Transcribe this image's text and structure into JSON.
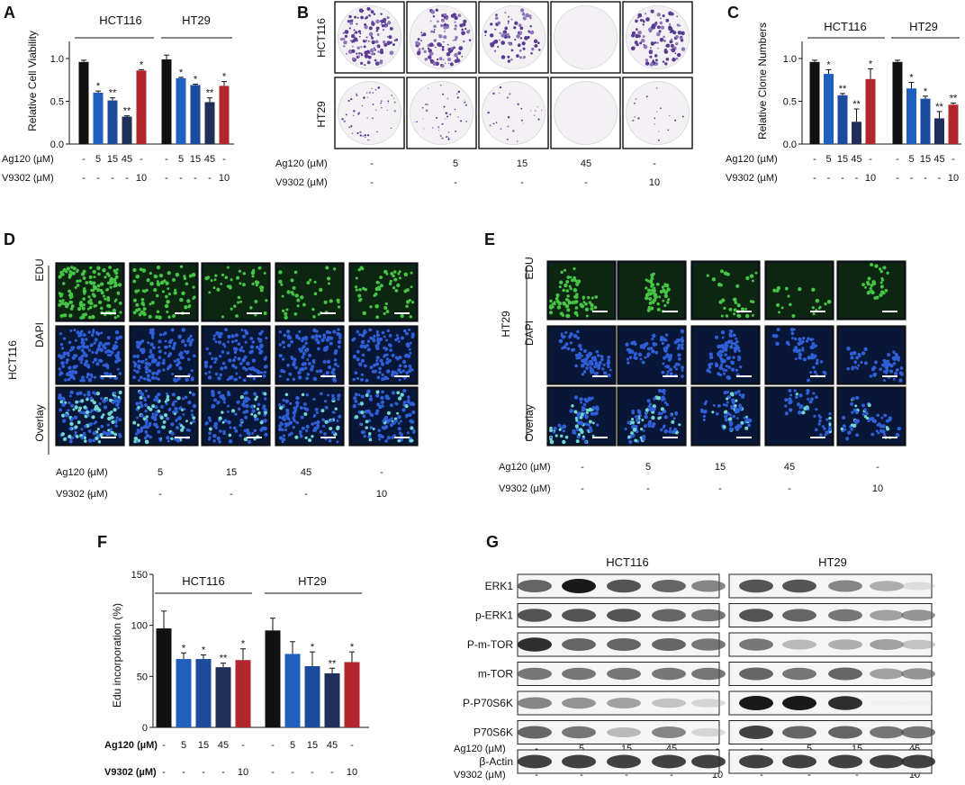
{
  "panels": [
    "A",
    "B",
    "C",
    "D",
    "E",
    "F",
    "G"
  ],
  "common": {
    "ag120": "Ag120 (µM)",
    "v9302": "V9302 (µM)",
    "ag_doses": [
      "-",
      "5",
      "15",
      "45",
      "-"
    ],
    "v_doses": [
      "-",
      "-",
      "-",
      "-",
      "10"
    ],
    "groups": [
      "HCT116",
      "HT29"
    ]
  },
  "panel_b": {
    "rows": [
      "HCT116",
      "HT29"
    ]
  },
  "panel_de": {
    "rows": [
      "EDU",
      "DAPI",
      "Overlay"
    ],
    "cell_d": "HCT116",
    "cell_e": "HT29"
  },
  "panel_g": {
    "groups": [
      "HCT116",
      "HT29"
    ],
    "proteins": [
      "ERK1",
      "p-ERK1",
      "P-m-TOR",
      "m-TOR",
      "P-P70S6K",
      "P70S6K",
      "β-Actin"
    ],
    "band_intensity": {
      "HCT116": [
        [
          0.8,
          1.0,
          0.85,
          0.8,
          0.7
        ],
        [
          0.85,
          0.85,
          0.85,
          0.8,
          0.75
        ],
        [
          0.95,
          0.8,
          0.8,
          0.8,
          0.75
        ],
        [
          0.75,
          0.75,
          0.75,
          0.75,
          0.75
        ],
        [
          0.7,
          0.65,
          0.6,
          0.45,
          0.35
        ],
        [
          0.8,
          0.75,
          0.5,
          0.7,
          0.35
        ],
        [
          0.9,
          0.9,
          0.9,
          0.9,
          0.9
        ]
      ],
      "HT29": [
        [
          0.85,
          0.85,
          0.7,
          0.55,
          0.3
        ],
        [
          0.85,
          0.8,
          0.75,
          0.6,
          0.65
        ],
        [
          0.75,
          0.5,
          0.55,
          0.6,
          0.45
        ],
        [
          0.8,
          0.75,
          0.8,
          0.6,
          0.65
        ],
        [
          1.0,
          1.0,
          0.95,
          0.05,
          0.05
        ],
        [
          0.9,
          0.8,
          0.8,
          0.75,
          0.75
        ],
        [
          0.9,
          0.9,
          0.9,
          0.9,
          0.9
        ]
      ]
    }
  },
  "chart_data": [
    {
      "type": "bar",
      "panel": "A",
      "ylabel": "Relative Cell Viability",
      "ylim": [
        0,
        1.2
      ],
      "yticks": [
        "0.0",
        "0.5",
        "1.0"
      ],
      "groups": [
        "HCT116",
        "HT29"
      ],
      "series": [
        {
          "group": "HCT116",
          "values": [
            0.96,
            0.6,
            0.51,
            0.32,
            0.86
          ],
          "errors": [
            0.02,
            0.02,
            0.03,
            0.01,
            0.01
          ],
          "stars": [
            "",
            "*",
            "**",
            "**",
            "*"
          ]
        },
        {
          "group": "HT29",
          "values": [
            0.99,
            0.77,
            0.69,
            0.49,
            0.68
          ],
          "errors": [
            0.05,
            0.01,
            0.01,
            0.05,
            0.05
          ],
          "stars": [
            "",
            "*",
            "*",
            "**",
            "*"
          ]
        }
      ]
    },
    {
      "type": "bar",
      "panel": "C",
      "ylabel": "Relative Clone Numbers",
      "ylim": [
        0,
        1.2
      ],
      "yticks": [
        "0.0",
        "0.5",
        "1.0"
      ],
      "groups": [
        "HCT116",
        "HT29"
      ],
      "series": [
        {
          "group": "HCT116",
          "values": [
            0.96,
            0.82,
            0.57,
            0.26,
            0.76
          ],
          "errors": [
            0.02,
            0.05,
            0.02,
            0.15,
            0.12
          ],
          "stars": [
            "",
            "*",
            "**",
            "**",
            "*"
          ]
        },
        {
          "group": "HT29",
          "values": [
            0.96,
            0.65,
            0.53,
            0.3,
            0.46
          ],
          "errors": [
            0.02,
            0.07,
            0.03,
            0.08,
            0.02
          ],
          "stars": [
            "",
            "*",
            "*",
            "**",
            "**"
          ]
        }
      ]
    },
    {
      "type": "bar",
      "panel": "F",
      "ylabel": "Edu incorporation (%)",
      "ylim": [
        0,
        150
      ],
      "yticks": [
        "0",
        "50",
        "100",
        "150"
      ],
      "groups": [
        "HCT116",
        "HT29"
      ],
      "series": [
        {
          "group": "HCT116",
          "values": [
            97,
            67,
            67,
            59,
            66
          ],
          "errors": [
            17,
            6,
            4,
            4,
            11
          ],
          "stars": [
            "",
            "*",
            "*",
            "**",
            "*"
          ]
        },
        {
          "group": "HT29",
          "values": [
            95,
            72,
            60,
            53,
            64
          ],
          "errors": [
            12,
            12,
            14,
            5,
            10
          ],
          "stars": [
            "",
            "",
            "*",
            "**",
            "*"
          ]
        }
      ]
    }
  ]
}
